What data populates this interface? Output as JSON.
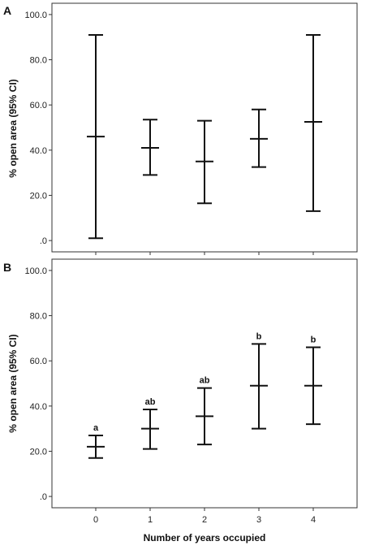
{
  "chart_data": [
    {
      "type": "errorbar",
      "panel_label": "A",
      "ylabel": "% open area (95% CI)",
      "xlabel": "",
      "categories": [
        "0",
        "1",
        "2",
        "3",
        "4"
      ],
      "ylim": [
        -5,
        105
      ],
      "yticks": [
        0,
        20,
        40,
        60,
        80,
        100
      ],
      "ytick_labels": [
        ".0",
        "20.0",
        "40.0",
        "60.0",
        "80.0",
        "100.0"
      ],
      "show_x_tick_labels": false,
      "points": [
        {
          "x": "0",
          "mean": 46.0,
          "lower": 1.0,
          "upper": 91.0,
          "annotation": ""
        },
        {
          "x": "1",
          "mean": 41.0,
          "lower": 29.0,
          "upper": 53.5,
          "annotation": ""
        },
        {
          "x": "2",
          "mean": 35.0,
          "lower": 16.5,
          "upper": 53.0,
          "annotation": ""
        },
        {
          "x": "3",
          "mean": 45.0,
          "lower": 32.5,
          "upper": 58.0,
          "annotation": ""
        },
        {
          "x": "4",
          "mean": 52.5,
          "lower": 13.0,
          "upper": 91.0,
          "annotation": ""
        }
      ]
    },
    {
      "type": "errorbar",
      "panel_label": "B",
      "ylabel": "% open area (95% CI)",
      "xlabel": "Number of years occupied",
      "categories": [
        "0",
        "1",
        "2",
        "3",
        "4"
      ],
      "ylim": [
        -5,
        105
      ],
      "yticks": [
        0,
        20,
        40,
        60,
        80,
        100
      ],
      "ytick_labels": [
        ".0",
        "20.0",
        "40.0",
        "60.0",
        "80.0",
        "100.0"
      ],
      "show_x_tick_labels": true,
      "points": [
        {
          "x": "0",
          "mean": 22.0,
          "lower": 17.0,
          "upper": 27.0,
          "annotation": "a"
        },
        {
          "x": "1",
          "mean": 30.0,
          "lower": 21.0,
          "upper": 38.5,
          "annotation": "ab"
        },
        {
          "x": "2",
          "mean": 35.5,
          "lower": 23.0,
          "upper": 48.0,
          "annotation": "ab"
        },
        {
          "x": "3",
          "mean": 49.0,
          "lower": 30.0,
          "upper": 67.5,
          "annotation": "b"
        },
        {
          "x": "4",
          "mean": 49.0,
          "lower": 32.0,
          "upper": 66.0,
          "annotation": "b"
        }
      ]
    }
  ]
}
